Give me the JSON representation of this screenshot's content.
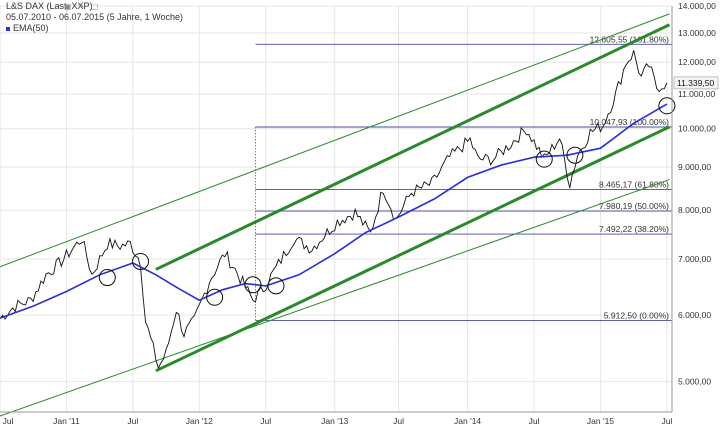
{
  "header": {
    "title": "L&S DAX (Last, XXP)",
    "range": "05.07.2010 - 06.07.2015 (5 Jahre, 1 Woche)",
    "ema_label": "EMA(50)"
  },
  "colors": {
    "price": "#111111",
    "ema": "#2b2fd4",
    "channel": "#2a8a2a",
    "fib": "#4a4aa6",
    "grid": "#e6e6e6"
  },
  "chart_data": {
    "type": "line",
    "y_scale": "log",
    "ylim": [
      4600,
      14000
    ],
    "xlim": [
      "2010-07-05",
      "2015-07-20"
    ],
    "y_ticks": [
      {
        "v": 5000,
        "label": "5.000,00"
      },
      {
        "v": 6000,
        "label": "6.000,00"
      },
      {
        "v": 7000,
        "label": "7.000,00"
      },
      {
        "v": 8000,
        "label": "8.000,00"
      },
      {
        "v": 9000,
        "label": "9.000,00"
      },
      {
        "v": 10000,
        "label": "10.000,00"
      },
      {
        "v": 11000,
        "label": "11.000,00"
      },
      {
        "v": 12000,
        "label": "12.000,00"
      },
      {
        "v": 13000,
        "label": "13.000,00"
      },
      {
        "v": 14000,
        "label": "14.000,00"
      }
    ],
    "x_ticks": [
      {
        "date": "2010-07-05",
        "label": "Jul"
      },
      {
        "date": "2011-01-03",
        "label": "Jan '11"
      },
      {
        "date": "2011-07-04",
        "label": "Jul"
      },
      {
        "date": "2012-01-02",
        "label": "Jan '12"
      },
      {
        "date": "2012-07-02",
        "label": "Jul"
      },
      {
        "date": "2013-01-07",
        "label": "Jan '13"
      },
      {
        "date": "2013-07-01",
        "label": "Jul"
      },
      {
        "date": "2014-01-06",
        "label": "Jan '14"
      },
      {
        "date": "2014-07-07",
        "label": "Jul"
      },
      {
        "date": "2015-01-05",
        "label": "Jan '15"
      },
      {
        "date": "2015-07-06",
        "label": "Jul"
      }
    ],
    "last_price": {
      "value": 11339.5,
      "label": "11.339,50"
    },
    "price_series": {
      "name": "L&S DAX",
      "points": [
        [
          "2010-07-05",
          5950
        ],
        [
          "2010-08-16",
          6150
        ],
        [
          "2010-09-27",
          6250
        ],
        [
          "2010-11-08",
          6700
        ],
        [
          "2010-12-20",
          6950
        ],
        [
          "2011-02-14",
          7400
        ],
        [
          "2011-03-14",
          6700
        ],
        [
          "2011-04-25",
          7300
        ],
        [
          "2011-05-30",
          7250
        ],
        [
          "2011-06-27",
          7300
        ],
        [
          "2011-07-25",
          6950
        ],
        [
          "2011-08-08",
          5900
        ],
        [
          "2011-09-12",
          5200
        ],
        [
          "2011-10-03",
          5400
        ],
        [
          "2011-10-31",
          6100
        ],
        [
          "2011-11-21",
          5700
        ],
        [
          "2011-12-19",
          5900
        ],
        [
          "2012-01-30",
          6600
        ],
        [
          "2012-03-12",
          7100
        ],
        [
          "2012-04-09",
          6800
        ],
        [
          "2012-05-28",
          6250
        ],
        [
          "2012-06-25",
          6450
        ],
        [
          "2012-08-06",
          6900
        ],
        [
          "2012-09-17",
          7400
        ],
        [
          "2012-11-05",
          7200
        ],
        [
          "2013-01-14",
          7750
        ],
        [
          "2013-03-04",
          7950
        ],
        [
          "2013-04-15",
          7500
        ],
        [
          "2013-05-20",
          8500
        ],
        [
          "2013-06-24",
          7800
        ],
        [
          "2013-08-05",
          8400
        ],
        [
          "2013-09-30",
          8600
        ],
        [
          "2013-11-18",
          9250
        ],
        [
          "2014-01-13",
          9700
        ],
        [
          "2014-02-03",
          9200
        ],
        [
          "2014-03-17",
          9200
        ],
        [
          "2014-05-05",
          9600
        ],
        [
          "2014-06-16",
          10000
        ],
        [
          "2014-08-04",
          9200
        ],
        [
          "2014-09-15",
          9750
        ],
        [
          "2014-10-13",
          8600
        ],
        [
          "2014-11-03",
          9300
        ],
        [
          "2014-12-08",
          9900
        ],
        [
          "2015-01-12",
          10100
        ],
        [
          "2015-02-16",
          11000
        ],
        [
          "2015-03-16",
          12000
        ],
        [
          "2015-04-06",
          12300
        ],
        [
          "2015-04-27",
          11500
        ],
        [
          "2015-05-18",
          11900
        ],
        [
          "2015-06-08",
          11200
        ],
        [
          "2015-07-06",
          11339.5
        ]
      ]
    },
    "ema_series": {
      "name": "EMA(50)",
      "points": [
        [
          "2010-07-05",
          5950
        ],
        [
          "2010-10-04",
          6150
        ],
        [
          "2011-01-03",
          6400
        ],
        [
          "2011-04-04",
          6700
        ],
        [
          "2011-07-04",
          6920
        ],
        [
          "2011-09-05",
          6700
        ],
        [
          "2011-11-07",
          6450
        ],
        [
          "2012-01-02",
          6250
        ],
        [
          "2012-03-05",
          6430
        ],
        [
          "2012-05-07",
          6540
        ],
        [
          "2012-07-02",
          6500
        ],
        [
          "2012-10-01",
          6700
        ],
        [
          "2013-01-07",
          7100
        ],
        [
          "2013-04-01",
          7520
        ],
        [
          "2013-07-01",
          7850
        ],
        [
          "2013-10-07",
          8250
        ],
        [
          "2014-01-06",
          8750
        ],
        [
          "2014-04-07",
          9050
        ],
        [
          "2014-07-07",
          9250
        ],
        [
          "2014-10-06",
          9300
        ],
        [
          "2015-01-05",
          9480
        ],
        [
          "2015-04-06",
          10150
        ],
        [
          "2015-07-06",
          10700
        ]
      ]
    },
    "fib_start": "2012-06-04",
    "fib_swing_low": "2012-06-04",
    "fib_levels": [
      {
        "value": 12605.55,
        "label": "12.605,55 (161.80%)"
      },
      {
        "value": 10047.93,
        "label": "10.047,93 (100.00%)"
      },
      {
        "value": 8465.17,
        "label": "8.465,17 (61.80%)"
      },
      {
        "value": 7980.19,
        "label": "7.980,19 (50.00%)"
      },
      {
        "value": 7492.22,
        "label": "7.492,22 (38.20%)"
      },
      {
        "value": 5912.5,
        "label": "5.912,50 (0.00%)"
      }
    ],
    "channels": [
      {
        "name": "",
        "weight": "thin",
        "from": [
          "2010-07-05",
          6850
        ],
        "to": [
          "2015-07-13",
          13700
        ]
      },
      {
        "name": "",
        "weight": "thick",
        "from": [
          "2011-09-05",
          6800
        ],
        "to": [
          "2015-07-13",
          13300
        ]
      },
      {
        "name": "",
        "weight": "thick",
        "from": [
          "2011-09-05",
          5150
        ],
        "to": [
          "2015-07-13",
          10050
        ]
      },
      {
        "name": "",
        "weight": "thin",
        "from": [
          "2010-07-05",
          4550
        ],
        "to": [
          "2015-07-13",
          8700
        ]
      }
    ],
    "annotations": [
      {
        "date": "2011-04-25",
        "value": 6650
      },
      {
        "date": "2011-07-25",
        "value": 6950
      },
      {
        "date": "2012-02-13",
        "value": 6300
      },
      {
        "date": "2012-05-28",
        "value": 6520
      },
      {
        "date": "2012-07-30",
        "value": 6500
      },
      {
        "date": "2014-08-04",
        "value": 9200
      },
      {
        "date": "2014-10-27",
        "value": 9300
      },
      {
        "date": "2015-07-06",
        "value": 10650
      }
    ]
  }
}
